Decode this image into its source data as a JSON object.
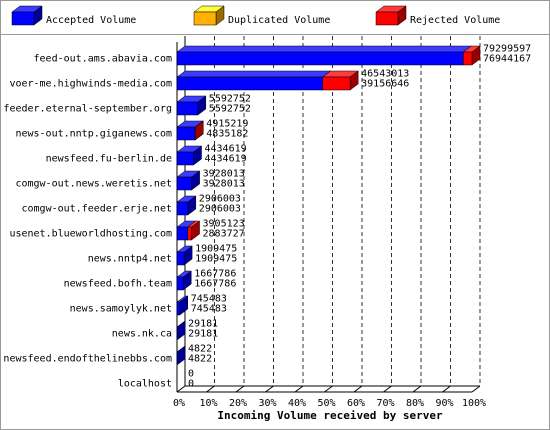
{
  "chart_data": {
    "type": "bar3d-stacked-horizontal",
    "xlabel": "Incoming Volume received by server",
    "categories": [
      "feed-out.ams.abavia.com",
      "voer-me.highwinds-media.com",
      "feeder.eternal-september.org",
      "news-out.nntp.giganews.com",
      "newsfeed.fu-berlin.de",
      "comgw-out.news.weretis.net",
      "comgw-out.feeder.erje.net",
      "usenet.blueworldhosting.com",
      "news.nntp4.net",
      "newsfeed.bofh.team",
      "news.samoylyk.net",
      "news.nk.ca",
      "newsfeed.endofthelinebbs.com",
      "localhost"
    ],
    "totals": [
      79299597,
      46543013,
      5592752,
      4915219,
      4434619,
      3928013,
      2906003,
      3905123,
      1909475,
      1667786,
      745483,
      29181,
      4822,
      0
    ],
    "series": [
      {
        "name": "Accepted Volume",
        "color": "#0000ff",
        "values": [
          76944167,
          39156646,
          5592752,
          4835182,
          4434619,
          3928013,
          2906003,
          2883727,
          1909475,
          1667786,
          745483,
          29181,
          4822,
          0
        ]
      },
      {
        "name": "Duplicated Volume",
        "color": "#ffb000",
        "values": [
          0,
          0,
          0,
          0,
          0,
          0,
          0,
          0,
          0,
          0,
          0,
          0,
          0,
          0
        ]
      },
      {
        "name": "Rejected Volume",
        "color": "#ff0000",
        "values": [
          2355430,
          7386367,
          0,
          80037,
          0,
          0,
          0,
          1021396,
          0,
          0,
          0,
          0,
          0,
          0
        ]
      }
    ],
    "xlim": [
      0,
      79299597
    ],
    "xticks": [
      {
        "value": 0,
        "label": "0%"
      },
      {
        "value": 7929959.7,
        "label": "10%"
      },
      {
        "value": 15859919.4,
        "label": "20%"
      },
      {
        "value": 23789879.1,
        "label": "30%"
      },
      {
        "value": 31719838.8,
        "label": "40%"
      },
      {
        "value": 39649798.5,
        "label": "50%"
      },
      {
        "value": 47579758.2,
        "label": "60%"
      },
      {
        "value": 55509717.9,
        "label": "70%"
      },
      {
        "value": 63439677.6,
        "label": "80%"
      },
      {
        "value": 71369637.3,
        "label": "90%"
      },
      {
        "value": 79299597,
        "label": "100%"
      }
    ],
    "grid": true
  }
}
